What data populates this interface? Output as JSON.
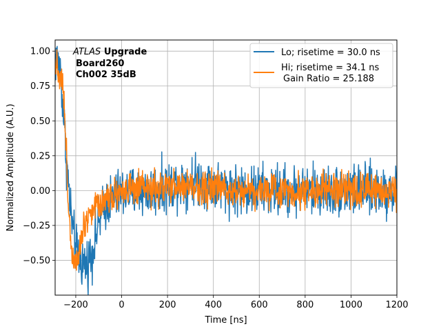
{
  "chart_data": {
    "type": "line",
    "title": "",
    "xlabel": "Time [ns]",
    "ylabel": "Normalized Amplitude (A.U.)",
    "xlim": [
      -290,
      1200
    ],
    "ylim": [
      -0.75,
      1.08
    ],
    "xticks": [
      -200,
      0,
      200,
      400,
      600,
      800,
      1000,
      1200
    ],
    "yticks": [
      -0.5,
      -0.25,
      0.0,
      0.25,
      0.5,
      0.75,
      1.0
    ],
    "xtick_labels": [
      "−200",
      "0",
      "200",
      "400",
      "600",
      "800",
      "1000",
      "1200"
    ],
    "ytick_labels": [
      "−0.50",
      "−0.25",
      "0.00",
      "0.25",
      "0.50",
      "0.75",
      "1.00"
    ],
    "grid": true,
    "legend_position": "top-right",
    "annotation": {
      "italic_part": "ATLAS",
      "bold_part": "Upgrade",
      "line2": "Board260",
      "line3": "Ch002 35dB"
    },
    "series": [
      {
        "name": "Lo; risetime = 30.0 ns",
        "color": "#1f77b4",
        "shape_x": [
          -290,
          -270,
          -255,
          -240,
          -225,
          -210,
          -195,
          -180,
          -165,
          -150,
          -130,
          -110,
          -90,
          -70,
          -40,
          0,
          50,
          100,
          150,
          200,
          250,
          300,
          350,
          400,
          450,
          500,
          550,
          600,
          700,
          800,
          900,
          1000,
          1100,
          1200
        ],
        "shape_y": [
          0.95,
          0.9,
          0.6,
          0.2,
          -0.1,
          -0.32,
          -0.45,
          -0.5,
          -0.52,
          -0.52,
          -0.45,
          -0.3,
          -0.18,
          -0.1,
          -0.05,
          -0.02,
          -0.01,
          0.0,
          0.0,
          0.03,
          0.06,
          0.08,
          0.07,
          0.04,
          0.02,
          0.01,
          0.0,
          0.0,
          0.0,
          0.0,
          0.0,
          0.0,
          0.0,
          0.0
        ],
        "noise_amplitude": 0.09
      },
      {
        "name": "Hi; risetime = 34.1 ns",
        "color": "#ff7f0e",
        "shape_x": [
          -290,
          -275,
          -260,
          -250,
          -240,
          -230,
          -220,
          -210,
          -200,
          -190,
          -180,
          -170,
          -150,
          -120,
          -90,
          -60,
          -30,
          0,
          50,
          100,
          150,
          200,
          250,
          300,
          400,
          500,
          600,
          700,
          800,
          900,
          1000,
          1100,
          1200
        ],
        "shape_y": [
          0.95,
          0.85,
          0.8,
          0.6,
          0.2,
          -0.15,
          -0.4,
          -0.48,
          -0.48,
          -0.45,
          -0.38,
          -0.28,
          -0.18,
          -0.12,
          -0.08,
          -0.04,
          -0.02,
          0.0,
          0.0,
          0.01,
          0.01,
          0.02,
          0.03,
          0.03,
          0.02,
          0.01,
          0.0,
          0.0,
          0.0,
          0.0,
          0.0,
          0.0,
          0.0
        ],
        "noise_amplitude": 0.06
      }
    ],
    "legend_extra": "Gain Ratio = 25.188"
  }
}
